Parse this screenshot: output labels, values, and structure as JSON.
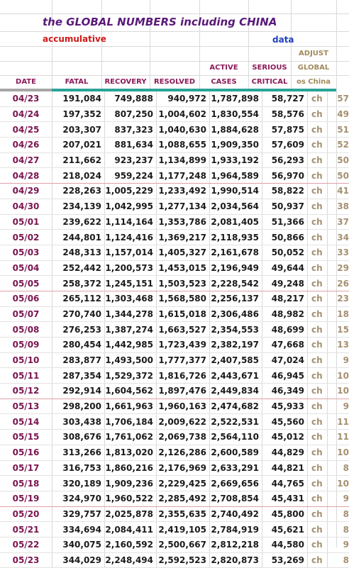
{
  "title": "the GLOBAL NUMBERS including CHINA",
  "subtitle": "accumulative",
  "data_label": "data",
  "headers": {
    "date": "DATE",
    "fatal": "FATAL",
    "recovery": "RECOVERY",
    "resolved": "RESOLVED",
    "active_1": "ACTIVE",
    "active_2": "CASES",
    "serious_1": "SERIOUS",
    "serious_2": "CRITICAL",
    "adjust_1": "ADJUST",
    "adjust_2": "GLOBAL",
    "adjust_3": "os China"
  },
  "colors": {
    "title": "#5a1a7a",
    "subtitle": "#d01818",
    "data_label": "#1f3fbf",
    "header": "#8b1a5a",
    "teal_bar": "#2aa396",
    "adjust_text": "#a49070"
  },
  "rows": [
    {
      "date": "04/23",
      "fatal": "191,084",
      "recovery": "749,888",
      "resolved": "940,972",
      "active": "1,787,898",
      "serious": "58,727",
      "ch": "ch",
      "adj": "57"
    },
    {
      "date": "04/24",
      "fatal": "197,352",
      "recovery": "807,250",
      "resolved": "1,004,602",
      "active": "1,830,554",
      "serious": "58,576",
      "ch": "ch",
      "adj": "49"
    },
    {
      "date": "04/25",
      "fatal": "203,307",
      "recovery": "837,323",
      "resolved": "1,040,630",
      "active": "1,884,628",
      "serious": "57,875",
      "ch": "ch",
      "adj": "51"
    },
    {
      "date": "04/26",
      "fatal": "207,021",
      "recovery": "881,634",
      "resolved": "1,088,655",
      "active": "1,909,350",
      "serious": "57,609",
      "ch": "ch",
      "adj": "52"
    },
    {
      "date": "04/27",
      "fatal": "211,662",
      "recovery": "923,237",
      "resolved": "1,134,899",
      "active": "1,933,192",
      "serious": "56,293",
      "ch": "ch",
      "adj": "50"
    },
    {
      "date": "04/28",
      "fatal": "218,024",
      "recovery": "959,224",
      "resolved": "1,177,248",
      "active": "1,964,589",
      "serious": "56,970",
      "ch": "ch",
      "adj": "50"
    },
    {
      "date": "04/29",
      "fatal": "228,263",
      "recovery": "1,005,229",
      "resolved": "1,233,492",
      "active": "1,990,514",
      "serious": "58,822",
      "ch": "ch",
      "adj": "41"
    },
    {
      "date": "04/30",
      "fatal": "234,139",
      "recovery": "1,042,995",
      "resolved": "1,277,134",
      "active": "2,034,564",
      "serious": "50,937",
      "ch": "ch",
      "adj": "38"
    },
    {
      "date": "05/01",
      "fatal": "239,622",
      "recovery": "1,114,164",
      "resolved": "1,353,786",
      "active": "2,081,405",
      "serious": "51,366",
      "ch": "ch",
      "adj": "37"
    },
    {
      "date": "05/02",
      "fatal": "244,801",
      "recovery": "1,124,416",
      "resolved": "1,369,217",
      "active": "2,118,935",
      "serious": "50,866",
      "ch": "ch",
      "adj": "34"
    },
    {
      "date": "05/03",
      "fatal": "248,313",
      "recovery": "1,157,014",
      "resolved": "1,405,327",
      "active": "2,161,678",
      "serious": "50,052",
      "ch": "ch",
      "adj": "33"
    },
    {
      "date": "05/04",
      "fatal": "252,442",
      "recovery": "1,200,573",
      "resolved": "1,453,015",
      "active": "2,196,949",
      "serious": "49,644",
      "ch": "ch",
      "adj": "29"
    },
    {
      "date": "05/05",
      "fatal": "258,372",
      "recovery": "1,245,151",
      "resolved": "1,503,523",
      "active": "2,228,542",
      "serious": "49,248",
      "ch": "ch",
      "adj": "26"
    },
    {
      "date": "05/06",
      "fatal": "265,112",
      "recovery": "1,303,468",
      "resolved": "1,568,580",
      "active": "2,256,137",
      "serious": "48,217",
      "ch": "ch",
      "adj": "23"
    },
    {
      "date": "05/07",
      "fatal": "270,740",
      "recovery": "1,344,278",
      "resolved": "1,615,018",
      "active": "2,306,486",
      "serious": "48,982",
      "ch": "ch",
      "adj": "18"
    },
    {
      "date": "05/08",
      "fatal": "276,253",
      "recovery": "1,387,274",
      "resolved": "1,663,527",
      "active": "2,354,553",
      "serious": "48,699",
      "ch": "ch",
      "adj": "15"
    },
    {
      "date": "05/09",
      "fatal": "280,454",
      "recovery": "1,442,985",
      "resolved": "1,723,439",
      "active": "2,382,197",
      "serious": "47,668",
      "ch": "ch",
      "adj": "13"
    },
    {
      "date": "05/10",
      "fatal": "283,877",
      "recovery": "1,493,500",
      "resolved": "1,777,377",
      "active": "2,407,585",
      "serious": "47,024",
      "ch": "ch",
      "adj": "9"
    },
    {
      "date": "05/11",
      "fatal": "287,354",
      "recovery": "1,529,372",
      "resolved": "1,816,726",
      "active": "2,443,671",
      "serious": "46,945",
      "ch": "ch",
      "adj": "10"
    },
    {
      "date": "05/12",
      "fatal": "292,914",
      "recovery": "1,604,562",
      "resolved": "1,897,476",
      "active": "2,449,834",
      "serious": "46,349",
      "ch": "ch",
      "adj": "10"
    },
    {
      "date": "05/13",
      "fatal": "298,200",
      "recovery": "1,661,963",
      "resolved": "1,960,163",
      "active": "2,474,682",
      "serious": "45,933",
      "ch": "ch",
      "adj": "9"
    },
    {
      "date": "05/14",
      "fatal": "303,438",
      "recovery": "1,706,184",
      "resolved": "2,009,622",
      "active": "2,522,531",
      "serious": "45,560",
      "ch": "ch",
      "adj": "11"
    },
    {
      "date": "05/15",
      "fatal": "308,676",
      "recovery": "1,761,062",
      "resolved": "2,069,738",
      "active": "2,564,110",
      "serious": "45,012",
      "ch": "ch",
      "adj": "11"
    },
    {
      "date": "05/16",
      "fatal": "313,266",
      "recovery": "1,813,020",
      "resolved": "2,126,286",
      "active": "2,600,589",
      "serious": "44,829",
      "ch": "ch",
      "adj": "10"
    },
    {
      "date": "05/17",
      "fatal": "316,753",
      "recovery": "1,860,216",
      "resolved": "2,176,969",
      "active": "2,633,291",
      "serious": "44,821",
      "ch": "ch",
      "adj": "8"
    },
    {
      "date": "05/18",
      "fatal": "320,189",
      "recovery": "1,909,236",
      "resolved": "2,229,425",
      "active": "2,669,656",
      "serious": "44,765",
      "ch": "ch",
      "adj": "10"
    },
    {
      "date": "05/19",
      "fatal": "324,970",
      "recovery": "1,960,522",
      "resolved": "2,285,492",
      "active": "2,708,854",
      "serious": "45,431",
      "ch": "ch",
      "adj": "9"
    },
    {
      "date": "05/20",
      "fatal": "329,757",
      "recovery": "2,025,878",
      "resolved": "2,355,635",
      "active": "2,740,492",
      "serious": "45,800",
      "ch": "ch",
      "adj": "8"
    },
    {
      "date": "05/21",
      "fatal": "334,694",
      "recovery": "2,084,411",
      "resolved": "2,419,105",
      "active": "2,784,919",
      "serious": "45,621",
      "ch": "ch",
      "adj": "8"
    },
    {
      "date": "05/22",
      "fatal": "340,075",
      "recovery": "2,160,592",
      "resolved": "2,500,667",
      "active": "2,812,218",
      "serious": "44,580",
      "ch": "ch",
      "adj": "9"
    },
    {
      "date": "05/23",
      "fatal": "344,029",
      "recovery": "2,248,494",
      "resolved": "2,592,523",
      "active": "2,820,873",
      "serious": "53,269",
      "ch": "ch",
      "adj": "8"
    }
  ]
}
